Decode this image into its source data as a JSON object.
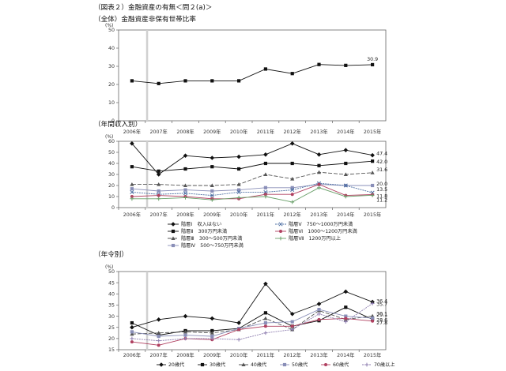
{
  "figure_title": "（図表２）金融資産の有無＜問２(a)＞",
  "chart_data": [
    {
      "id": "overall",
      "type": "line",
      "title": "（全体）金融資産非保有世帯比率",
      "unit": "(%)",
      "x": [
        "2006年",
        "2007年",
        "2008年",
        "2009年",
        "2010年",
        "2011年",
        "2012年",
        "2013年",
        "2014年",
        "2015年"
      ],
      "ylim": [
        0,
        50
      ],
      "yticks": [
        0,
        10,
        20,
        30,
        40,
        50
      ],
      "grid": false,
      "legend": "none",
      "series": [
        {
          "values": [
            22,
            20.5,
            22,
            22,
            22,
            28.5,
            26,
            31,
            30.5,
            30.9
          ],
          "color": "#111111",
          "dash": "",
          "marker": "square",
          "end_label": "30.9"
        }
      ]
    },
    {
      "id": "income",
      "type": "line",
      "title": "（年間収入別）",
      "unit": "(%)",
      "x": [
        "2006年",
        "2007年",
        "2008年",
        "2009年",
        "2010年",
        "2011年",
        "2012年",
        "2013年",
        "2014年",
        "2015年"
      ],
      "ylim": [
        0,
        60
      ],
      "yticks": [
        0,
        10,
        20,
        30,
        40,
        50,
        60
      ],
      "grid": false,
      "legend": "bottom",
      "series": [
        {
          "name": "階層Ⅰ　収入はない",
          "values": [
            58,
            30,
            47,
            45,
            46,
            48,
            58,
            48,
            52,
            47.4
          ],
          "color": "#111111",
          "dash": "",
          "marker": "diamond",
          "end_label": "47.4"
        },
        {
          "name": "階層Ⅱ　300万円未満",
          "values": [
            37,
            33,
            35,
            37,
            35,
            40,
            40,
            38,
            40,
            42.0
          ],
          "color": "#111111",
          "dash": "",
          "marker": "square",
          "end_label": "42.0"
        },
        {
          "name": "階層Ⅲ　300～500万円未満",
          "values": [
            21,
            21,
            20,
            20,
            21,
            30,
            26,
            32,
            30,
            31.6
          ],
          "color": "#555555",
          "dash": "5,2",
          "marker": "triangle",
          "end_label": "31.6"
        },
        {
          "name": "階層Ⅳ　500～750万円未満",
          "values": [
            17,
            15,
            16,
            15,
            16,
            18,
            18,
            21,
            20,
            20.0
          ],
          "color": "#8a8fb8",
          "dash": "",
          "marker": "square",
          "end_label": "20.0"
        },
        {
          "name": "階層Ⅴ　750～1000万円未満",
          "values": [
            14,
            12,
            13,
            11,
            14,
            14,
            16,
            22,
            20,
            13.5
          ],
          "color": "#4d6fa3",
          "dash": "2,1",
          "marker": "x",
          "end_label": "13.5"
        },
        {
          "name": "階層Ⅵ　1000～1200万円未満",
          "values": [
            10,
            11,
            10,
            8,
            8,
            12,
            12,
            21,
            11,
            11.8
          ],
          "color": "#b04060",
          "dash": "",
          "marker": "circle",
          "end_label": "11.8"
        },
        {
          "name": "階層Ⅶ　1200万円以上",
          "values": [
            8,
            8,
            9,
            7,
            9,
            10,
            5,
            18,
            10,
            11.2
          ],
          "color": "#6aa06a",
          "dash": "",
          "marker": "plus",
          "end_label": "11.2"
        }
      ]
    },
    {
      "id": "age",
      "type": "line",
      "title": "（年令別）",
      "unit": "(%)",
      "x": [
        "2006年",
        "2007年",
        "2008年",
        "2009年",
        "2010年",
        "2011年",
        "2012年",
        "2013年",
        "2014年",
        "2015年"
      ],
      "ylim": [
        15,
        50
      ],
      "yticks": [
        15,
        20,
        25,
        30,
        35,
        40,
        45,
        50
      ],
      "grid": false,
      "legend": "bottom",
      "series": [
        {
          "name": "20歳代",
          "values": [
            25,
            28.5,
            30,
            29,
            27,
            44.5,
            31,
            35.5,
            41,
            36.4
          ],
          "color": "#111111",
          "dash": "",
          "marker": "diamond",
          "end_label": "36.4"
        },
        {
          "name": "30歳代",
          "values": [
            27,
            21.5,
            23.5,
            23.5,
            24.5,
            31.5,
            25.5,
            28,
            34,
            28.6
          ],
          "color": "#111111",
          "dash": "",
          "marker": "square",
          "end_label": "28.6"
        },
        {
          "name": "40歳代",
          "values": [
            22,
            22.5,
            23,
            22.5,
            24,
            29,
            24,
            32.5,
            28.5,
            30.1
          ],
          "color": "#555555",
          "dash": "5,2",
          "marker": "triangle",
          "end_label": "30.1"
        },
        {
          "name": "50歳代",
          "values": [
            23,
            21,
            21.5,
            21,
            24.5,
            27,
            27.5,
            33,
            30,
            29.1
          ],
          "color": "#8a8fb8",
          "dash": "",
          "marker": "square",
          "end_label": "29.1"
        },
        {
          "name": "60歳代",
          "values": [
            18.5,
            17,
            20,
            19.5,
            24,
            25.5,
            25.5,
            28.5,
            29,
            27.8
          ],
          "color": "#b04060",
          "dash": "",
          "marker": "circle",
          "end_label": "27.8"
        },
        {
          "name": "70歳以上",
          "values": [
            20,
            19,
            20,
            20,
            19.5,
            22.5,
            24,
            31,
            27.5,
            35.7
          ],
          "color": "#8f7fb0",
          "dash": "2,1",
          "marker": "plus",
          "end_label": "35.7"
        }
      ]
    }
  ]
}
